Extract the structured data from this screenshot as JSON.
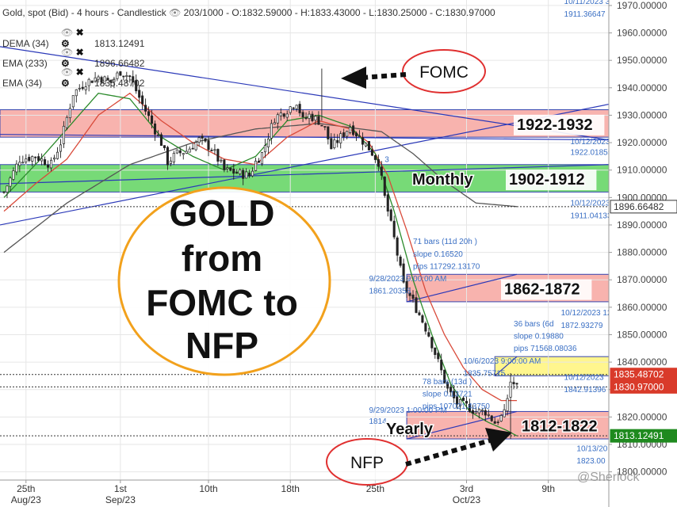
{
  "header": {
    "instrument": "Gold, spot (Bid) - 4 hours - Candlestick",
    "bars": "203/1000",
    "ohlc": "- O:1832.59000 - H:1833.43000 - L:1830.25000 - C:1830.97000"
  },
  "legend": [
    {
      "name": "DEMA (34)",
      "value": "1813.12491",
      "color": "#2b8a2b"
    },
    {
      "name": "EMA (233)",
      "value": "1896.66482",
      "color": "#555555"
    },
    {
      "name": "EMA (34)",
      "value": "1835.48702",
      "color": "#d94a3a"
    }
  ],
  "chart_data": {
    "type": "candlestick",
    "title": "GOLD from FOMC to NFP",
    "ylim": [
      1797,
      1972
    ],
    "y_ticks": [
      "1970.00000",
      "1960.00000",
      "1950.00000",
      "1940.00000",
      "1930.00000",
      "1920.00000",
      "1910.00000",
      "1900.00000",
      "1890.00000",
      "1880.00000",
      "1870.00000",
      "1860.00000",
      "1850.00000",
      "1840.00000",
      "1830.00000",
      "1820.00000",
      "1810.00000",
      "1800.00000"
    ],
    "y_tick_values": [
      1970,
      1960,
      1950,
      1940,
      1930,
      1920,
      1910,
      1900,
      1890,
      1880,
      1870,
      1860,
      1850,
      1840,
      1830,
      1820,
      1810,
      1800
    ],
    "x_labels": [
      {
        "top": "25th",
        "bottom": "Aug/23",
        "index": 7
      },
      {
        "top": "1st",
        "bottom": "Sep/23",
        "index": 37
      },
      {
        "top": "10th",
        "bottom": "",
        "index": 65
      },
      {
        "top": "18th",
        "bottom": "",
        "index": 91
      },
      {
        "top": "25th",
        "bottom": "",
        "index": 118
      },
      {
        "top": "3rd",
        "bottom": "Oct/23",
        "index": 147
      },
      {
        "top": "9th",
        "bottom": "",
        "index": 173
      }
    ],
    "price_anchors": [
      [
        0,
        1902
      ],
      [
        5,
        1914
      ],
      [
        10,
        1915
      ],
      [
        15,
        1912
      ],
      [
        18,
        1920
      ],
      [
        22,
        1938
      ],
      [
        26,
        1942
      ],
      [
        30,
        1944
      ],
      [
        34,
        1942
      ],
      [
        37,
        1946
      ],
      [
        40,
        1944
      ],
      [
        44,
        1934
      ],
      [
        47,
        1927
      ],
      [
        50,
        1920
      ],
      [
        52,
        1913
      ],
      [
        55,
        1916
      ],
      [
        58,
        1917
      ],
      [
        62,
        1921
      ],
      [
        66,
        1918
      ],
      [
        70,
        1910
      ],
      [
        74,
        1909
      ],
      [
        78,
        1908
      ],
      [
        80,
        1913
      ],
      [
        82,
        1916
      ],
      [
        86,
        1929
      ],
      [
        90,
        1932
      ],
      [
        93,
        1935
      ],
      [
        95,
        1928
      ],
      [
        97,
        1930
      ],
      [
        100,
        1928
      ],
      [
        102,
        1925
      ],
      [
        104,
        1918
      ],
      [
        107,
        1922
      ],
      [
        110,
        1926
      ],
      [
        113,
        1922
      ],
      [
        116,
        1918
      ],
      [
        119,
        1913
      ],
      [
        121,
        1900
      ],
      [
        124,
        1885
      ],
      [
        127,
        1868
      ],
      [
        130,
        1862
      ],
      [
        133,
        1855
      ],
      [
        135,
        1850
      ],
      [
        138,
        1840
      ],
      [
        141,
        1830
      ],
      [
        144,
        1825
      ],
      [
        147,
        1824
      ],
      [
        150,
        1822
      ],
      [
        153,
        1822
      ],
      [
        156,
        1818
      ],
      [
        159,
        1821
      ],
      [
        161,
        1833
      ],
      [
        163,
        1831
      ]
    ],
    "spikes": [
      {
        "index": 101,
        "high": 1947,
        "low": 1928
      },
      {
        "index": 161,
        "low": 1812,
        "high": 1836
      }
    ],
    "n_candles": 164,
    "ema34": [
      [
        0,
        1895
      ],
      [
        10,
        1905
      ],
      [
        20,
        1914
      ],
      [
        30,
        1930
      ],
      [
        40,
        1938
      ],
      [
        50,
        1928
      ],
      [
        60,
        1920
      ],
      [
        70,
        1914
      ],
      [
        80,
        1912
      ],
      [
        90,
        1922
      ],
      [
        100,
        1928
      ],
      [
        110,
        1925
      ],
      [
        116,
        1920
      ],
      [
        122,
        1908
      ],
      [
        128,
        1888
      ],
      [
        134,
        1866
      ],
      [
        140,
        1850
      ],
      [
        146,
        1838
      ],
      [
        152,
        1830
      ],
      [
        158,
        1826
      ],
      [
        163,
        1826
      ]
    ],
    "ema233": [
      [
        0,
        1880
      ],
      [
        20,
        1898
      ],
      [
        40,
        1912
      ],
      [
        60,
        1920
      ],
      [
        80,
        1925
      ],
      [
        100,
        1927
      ],
      [
        120,
        1924
      ],
      [
        130,
        1916
      ],
      [
        140,
        1906
      ],
      [
        150,
        1898
      ],
      [
        163,
        1896.7
      ]
    ],
    "dema34": [
      [
        0,
        1900
      ],
      [
        10,
        1912
      ],
      [
        20,
        1925
      ],
      [
        30,
        1938
      ],
      [
        40,
        1936
      ],
      [
        50,
        1922
      ],
      [
        60,
        1915
      ],
      [
        70,
        1910
      ],
      [
        80,
        1915
      ],
      [
        90,
        1928
      ],
      [
        100,
        1930
      ],
      [
        110,
        1926
      ],
      [
        118,
        1916
      ],
      [
        124,
        1895
      ],
      [
        130,
        1870
      ],
      [
        136,
        1850
      ],
      [
        142,
        1832
      ],
      [
        148,
        1822
      ],
      [
        154,
        1818
      ],
      [
        160,
        1815
      ],
      [
        163,
        1813.1
      ]
    ],
    "zones": [
      {
        "label": "1922-1932",
        "low": 1922,
        "high": 1932,
        "color": "#f7a6a0",
        "from": 0,
        "to": 163
      },
      {
        "label": "1902-1912",
        "low": 1902,
        "high": 1912,
        "color": "#5fd35f",
        "from": 0,
        "to": 163
      },
      {
        "label": "Monthly",
        "low": 1902,
        "high": 1912
      },
      {
        "label": "1862-1872",
        "low": 1862,
        "high": 1872,
        "color": "#f7a6a0",
        "from": 128,
        "to": 163
      },
      {
        "label": "1812-1822",
        "low": 1812,
        "high": 1822,
        "color": "#f7a6a0",
        "from": 128,
        "to": 163
      },
      {
        "label": "Yearly",
        "low": 1812,
        "high": 1822
      },
      {
        "label": "",
        "low": 1835,
        "high": 1842,
        "color": "#fff57a",
        "from": 156,
        "to": 163
      }
    ],
    "trendlines": [
      {
        "x1": 0,
        "y1": 1955,
        "x2": 163,
        "y2": 1921
      },
      {
        "x1": 0,
        "y1": 1890,
        "x2": 163,
        "y2": 1934
      },
      {
        "x1": 0,
        "y1": 1923,
        "x2": 163,
        "y2": 1921
      },
      {
        "x1": 0,
        "y1": 1905,
        "x2": 163,
        "y2": 1912
      },
      {
        "x1": 128,
        "y1": 1862,
        "x2": 163,
        "y2": 1872
      },
      {
        "x1": 128,
        "y1": 1812,
        "x2": 163,
        "y2": 1822
      },
      {
        "x1": 156,
        "y1": 1835,
        "x2": 163,
        "y2": 1842
      }
    ],
    "dotted_levels": [
      1896.66482,
      1835.48702,
      1830.97,
      1813.12491
    ],
    "price_tags": [
      {
        "value": 1896.66482,
        "label": "1896.66482",
        "bg": "#ffffff",
        "fg": "#333333"
      },
      {
        "value": 1835.48702,
        "label": "1835.48702",
        "bg": "#d93a2a",
        "fg": "#ffffff"
      },
      {
        "value": 1830.97,
        "label": "1830.97000",
        "bg": "#d93a2a",
        "fg": "#ffffff"
      },
      {
        "value": 1813.12491,
        "label": "1813.12491",
        "bg": "#1f8a1f",
        "fg": "#ffffff"
      }
    ],
    "annotations": {
      "fomc": "FOMC",
      "nfp": "NFP",
      "big_title": [
        "GOLD",
        "from",
        "FOMC to",
        "NFP"
      ],
      "tool_labels": [
        {
          "text": "71 bars (11d 20h )",
          "i": 130,
          "y": 1883
        },
        {
          "text": "slope 0.16520",
          "i": 130,
          "y": 1878.5
        },
        {
          "text": "pips 117292.13170",
          "i": 130,
          "y": 1874
        },
        {
          "text": "9/28/2023 9:00:00 AM",
          "i": 116,
          "y": 1869.5
        },
        {
          "text": "1861.20358",
          "i": 116,
          "y": 1865
        },
        {
          "text": "36 bars (6d",
          "i": 162,
          "y": 1853
        },
        {
          "text": "slope 0.19880",
          "i": 162,
          "y": 1848.5
        },
        {
          "text": "pips 71568.08036",
          "i": 162,
          "y": 1844
        },
        {
          "text": "10/6/2023 9:00:00 AM",
          "i": 146,
          "y": 1839.5
        },
        {
          "text": "1835.75715",
          "i": 146,
          "y": 1835
        },
        {
          "text": "78 bars (13d )",
          "i": 133,
          "y": 1832
        },
        {
          "text": "slope 0.13721",
          "i": 133,
          "y": 1827.5
        },
        {
          "text": "pips 107021.43750",
          "i": 133,
          "y": 1823
        },
        {
          "text": "9/29/2023 1:00:00 PM",
          "i": 116,
          "y": 1821.5
        },
        {
          "text": "1814",
          "i": 116,
          "y": 1817.5
        },
        {
          "text": "10/11/2023 3",
          "i": 178,
          "y": 1970.5
        },
        {
          "text": "1911.36647",
          "i": 178,
          "y": 1966
        },
        {
          "text": "10/12/2023",
          "i": 180,
          "y": 1919.5
        },
        {
          "text": "1922.01855",
          "i": 180,
          "y": 1915.5
        },
        {
          "text": "10/12/2023",
          "i": 180,
          "y": 1897
        },
        {
          "text": "1911.04133",
          "i": 180,
          "y": 1892.5
        },
        {
          "text": "10/12/2023 12",
          "i": 177,
          "y": 1857
        },
        {
          "text": "1872.93279",
          "i": 177,
          "y": 1852.5
        },
        {
          "text": "10/12/2023",
          "i": 178,
          "y": 1833.5
        },
        {
          "text": "1842.91396",
          "i": 178,
          "y": 1829
        },
        {
          "text": "10/13/20",
          "i": 182,
          "y": 1807.5
        },
        {
          "text": "1823.00",
          "i": 182,
          "y": 1803
        },
        {
          "text": "3",
          "i": 121,
          "y": 1913
        }
      ]
    },
    "watermark": "@Sherlock"
  }
}
